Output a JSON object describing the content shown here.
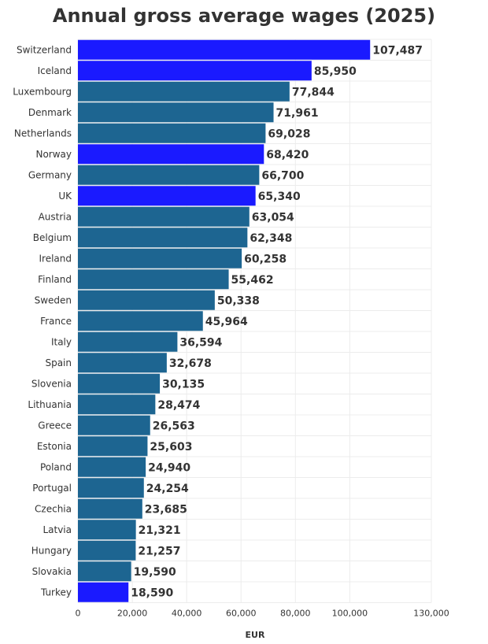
{
  "chart_data": {
    "type": "bar",
    "orientation": "horizontal",
    "title": "Annual gross average wages (2025)",
    "xlabel": "EUR",
    "ylabel": "",
    "xlim": [
      0,
      130000
    ],
    "x_ticks": [
      0,
      20000,
      40000,
      60000,
      80000,
      100000,
      130000
    ],
    "x_tick_labels": [
      "0",
      "20,000",
      "40,000",
      "60,000",
      "80,000",
      "100,000",
      "130,000"
    ],
    "grid": true,
    "colors": {
      "default": "#1d6591",
      "highlight": "#1a1aff"
    },
    "categories": [
      "Switzerland",
      "Iceland",
      "Luxembourg",
      "Denmark",
      "Netherlands",
      "Norway",
      "Germany",
      "UK",
      "Austria",
      "Belgium",
      "Ireland",
      "Finland",
      "Sweden",
      "France",
      "Italy",
      "Spain",
      "Slovenia",
      "Lithuania",
      "Greece",
      "Estonia",
      "Poland",
      "Portugal",
      "Czechia",
      "Latvia",
      "Hungary",
      "Slovakia",
      "Turkey"
    ],
    "values": [
      107487,
      85950,
      77844,
      71961,
      69028,
      68420,
      66700,
      65340,
      63054,
      62348,
      60258,
      55462,
      50338,
      45964,
      36594,
      32678,
      30135,
      28474,
      26563,
      25603,
      24940,
      24254,
      23685,
      21321,
      21257,
      19590,
      18590
    ],
    "value_labels": [
      "107,487",
      "85,950",
      "77,844",
      "71,961",
      "69,028",
      "68,420",
      "66,700",
      "65,340",
      "63,054",
      "62,348",
      "60,258",
      "55,462",
      "50,338",
      "45,964",
      "36,594",
      "32,678",
      "30,135",
      "28,474",
      "26,563",
      "25,603",
      "24,940",
      "24,254",
      "23,685",
      "21,321",
      "21,257",
      "19,590",
      "18,590"
    ],
    "highlighted": [
      "Switzerland",
      "Iceland",
      "Norway",
      "UK",
      "Turkey"
    ]
  }
}
